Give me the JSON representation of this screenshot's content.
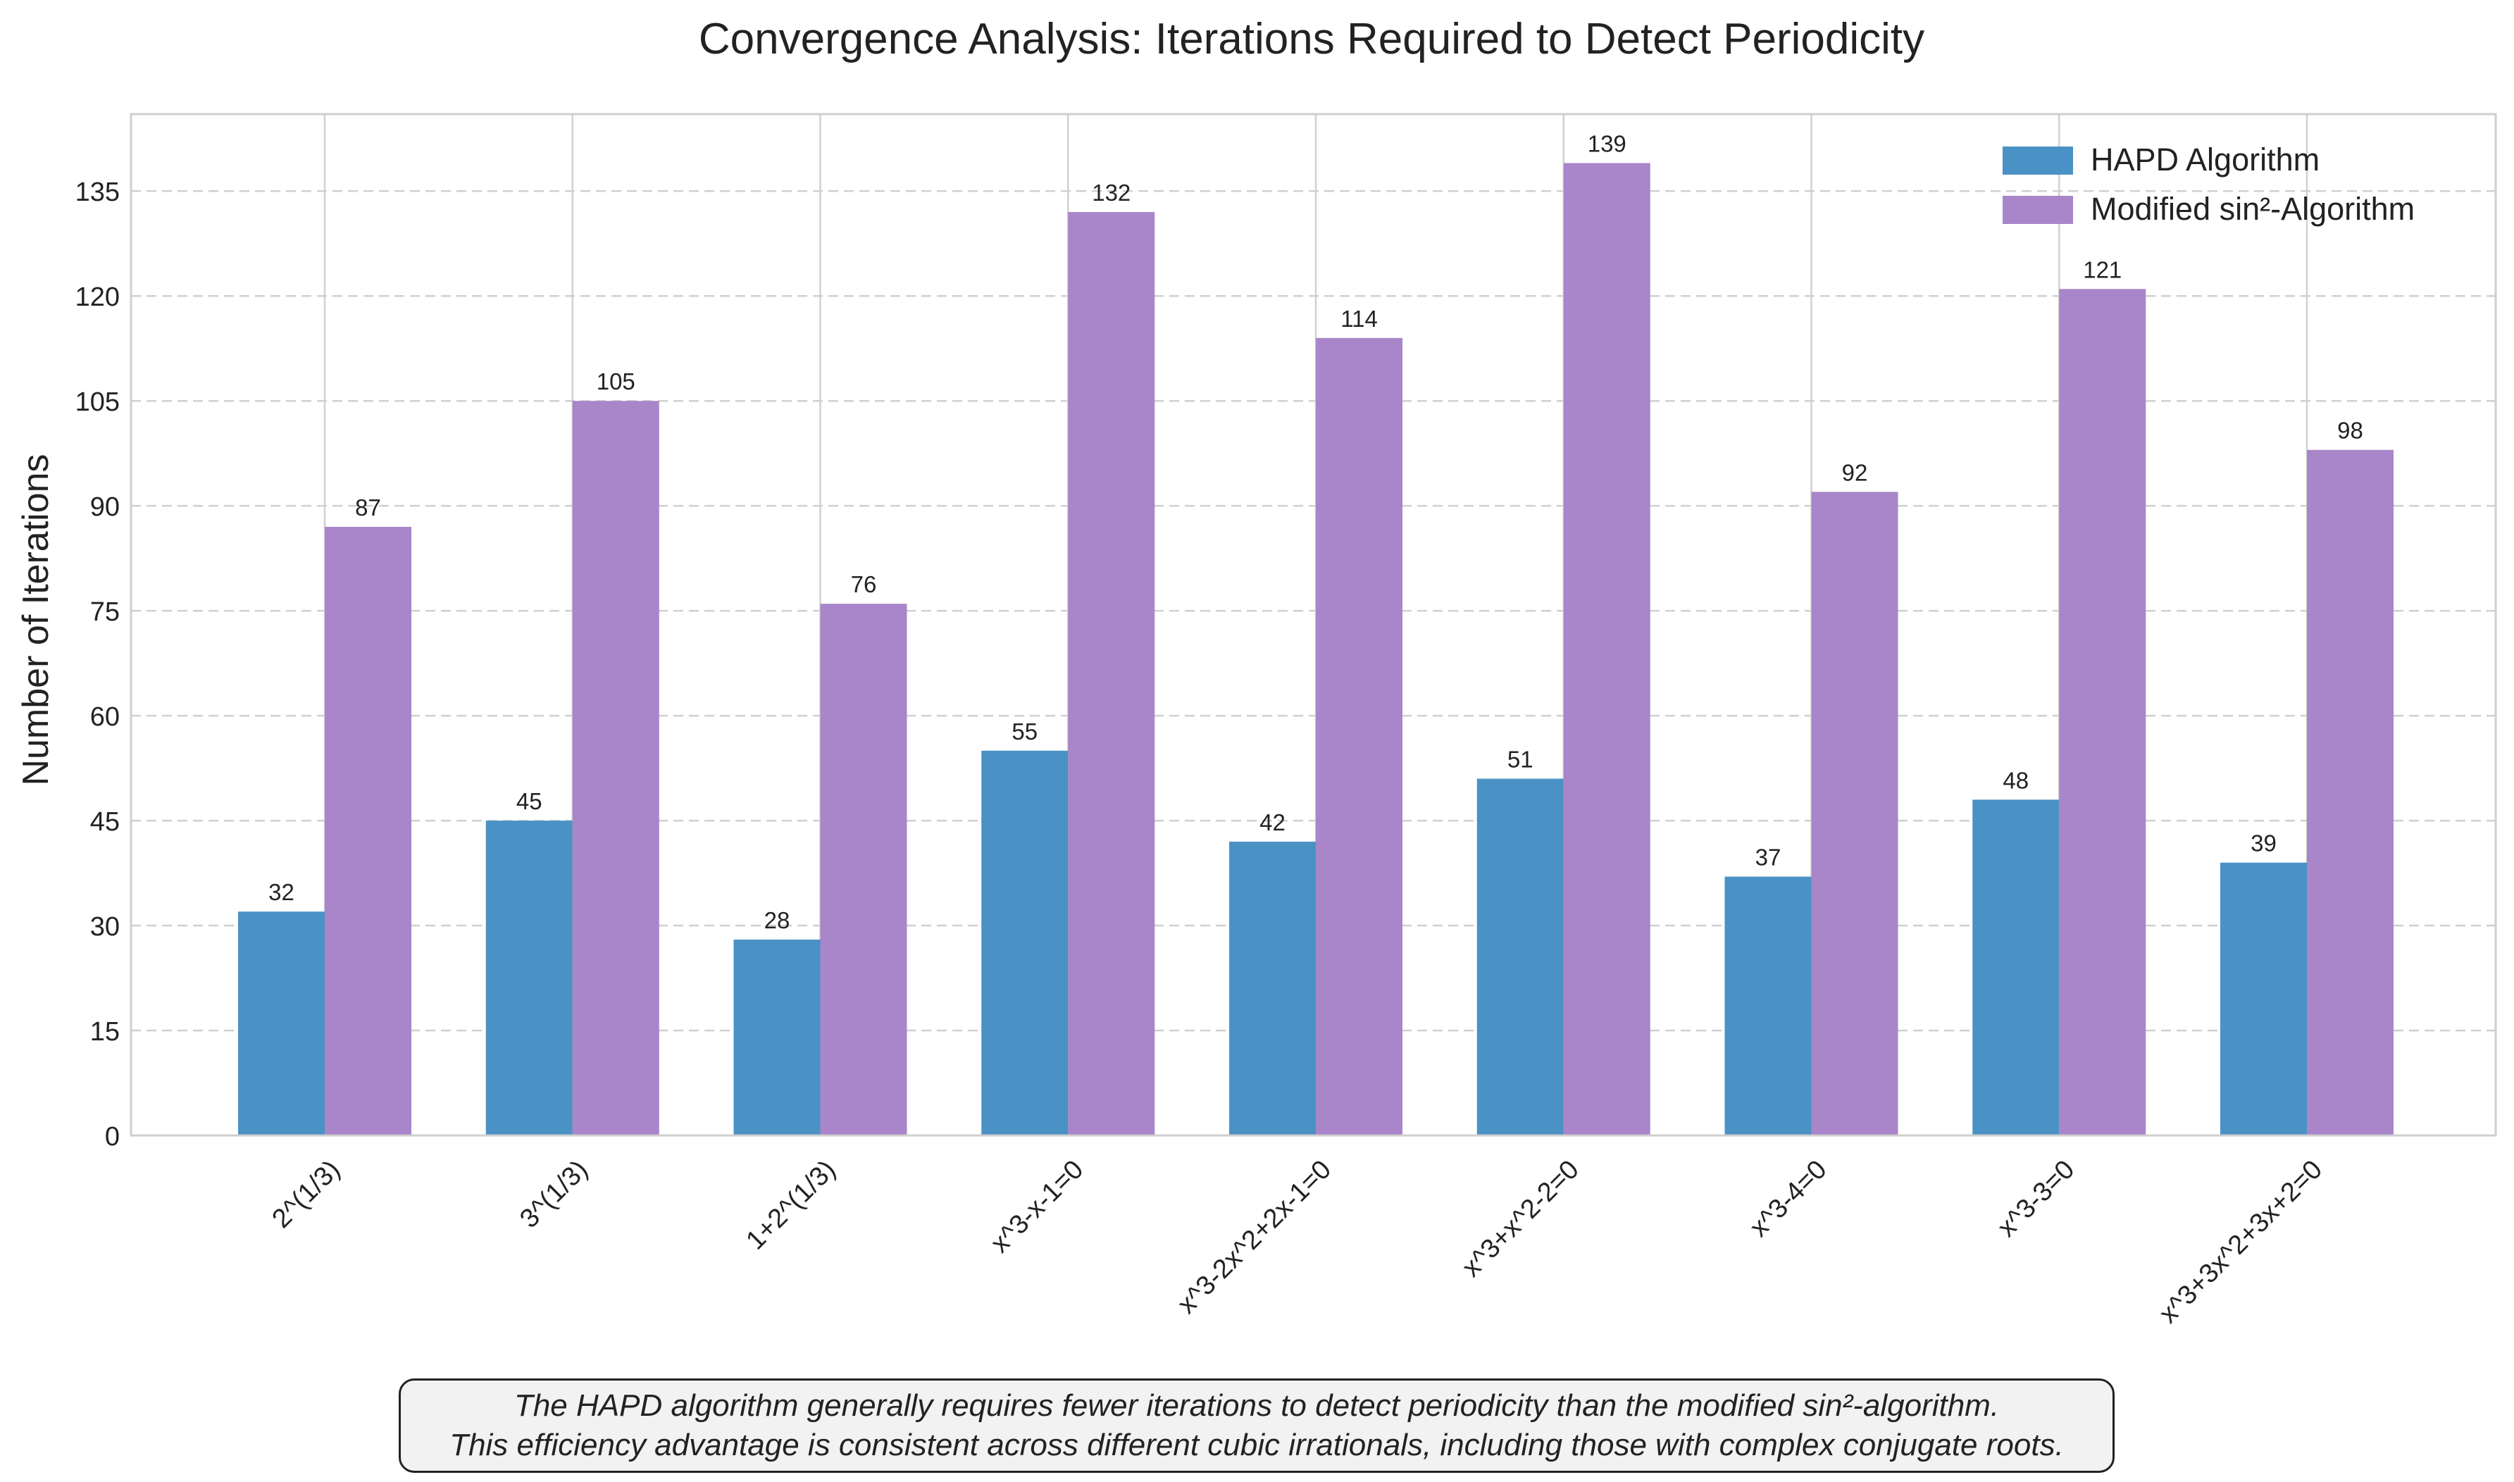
{
  "chart_data": {
    "type": "bar",
    "title": "Convergence Analysis: Iterations Required to Detect Periodicity",
    "xlabel": "",
    "ylabel": "Number of Iterations",
    "ylim": [
      0,
      146
    ],
    "yticks": [
      0,
      15,
      30,
      45,
      60,
      75,
      90,
      105,
      120,
      135
    ],
    "grid": "on",
    "legend_position": "top-right",
    "categories": [
      "2^(1/3)",
      "3^(1/3)",
      "1+2^(1/3)",
      "x^3-x-1=0",
      "x^3-2x^2+2x-1=0",
      "x^3+x^2-2=0",
      "x^3-4=0",
      "x^3-3=0",
      "x^3+3x^2+3x+2=0"
    ],
    "series": [
      {
        "name": "HAPD Algorithm",
        "color": "#4a92c5",
        "values": [
          32,
          45,
          28,
          55,
          42,
          51,
          37,
          48,
          39
        ]
      },
      {
        "name": "Modified sin²-Algorithm",
        "color": "#a886c9",
        "values": [
          87,
          105,
          76,
          132,
          114,
          139,
          92,
          121,
          98
        ]
      }
    ]
  },
  "caption": {
    "line1": "The HAPD algorithm generally requires fewer iterations to detect periodicity than the modified sin²-algorithm.",
    "line2": "This efficiency advantage is consistent across different cubic irrationals, including those with complex conjugate roots."
  }
}
